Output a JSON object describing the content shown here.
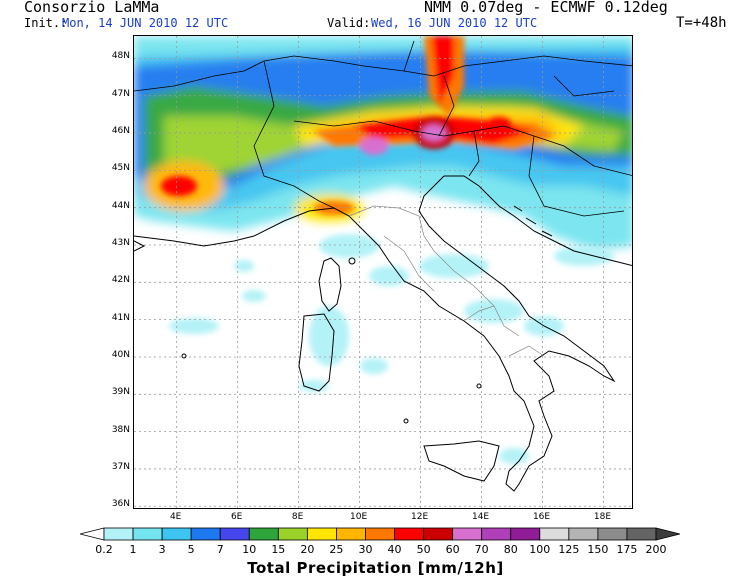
{
  "header": {
    "org": "Consorzio LaMMa",
    "model": "NMM 0.07deg - ECMWF 0.12deg",
    "init_label": "Init.:",
    "init_value": "Mon, 14 JUN 2010   12 UTC",
    "valid_label": "Valid:",
    "valid_value": "Wed, 16 JUN 2010   12 UTC",
    "lead_time": "T=+48h"
  },
  "map": {
    "lat_labels": [
      "48N",
      "47N",
      "46N",
      "45N",
      "44N",
      "43N",
      "42N",
      "41N",
      "40N",
      "39N",
      "38N",
      "37N",
      "36N"
    ],
    "lon_labels": [
      "4E",
      "6E",
      "8E",
      "10E",
      "12E",
      "14E",
      "16E",
      "18E"
    ],
    "lat_values": [
      48,
      47,
      46,
      45,
      44,
      43,
      42,
      41,
      40,
      39,
      38,
      37,
      36
    ],
    "lon_values": [
      4,
      6,
      8,
      10,
      12,
      14,
      16,
      18
    ],
    "lat_range": [
      35.9,
      48.6
    ],
    "lon_range": [
      2.6,
      19.0
    ]
  },
  "colorbar": {
    "title": "Total Precipitation [mm/12h]",
    "ticks": [
      "0.2",
      "1",
      "3",
      "5",
      "7",
      "10",
      "15",
      "20",
      "25",
      "30",
      "40",
      "50",
      "60",
      "70",
      "80",
      "100",
      "125",
      "150",
      "175",
      "200"
    ],
    "colors": [
      "#ffffff",
      "#b3f2f7",
      "#74e4ef",
      "#3ec4f0",
      "#1e78f0",
      "#4646ee",
      "#2ea53a",
      "#9ad22a",
      "#ffe600",
      "#ffb600",
      "#ff7800",
      "#ff0000",
      "#cc0000",
      "#d870d0",
      "#b040b8",
      "#901c98",
      "#dcdcdc",
      "#b4b4b4",
      "#8c8c8c",
      "#646464",
      "#3c3c3c"
    ]
  }
}
